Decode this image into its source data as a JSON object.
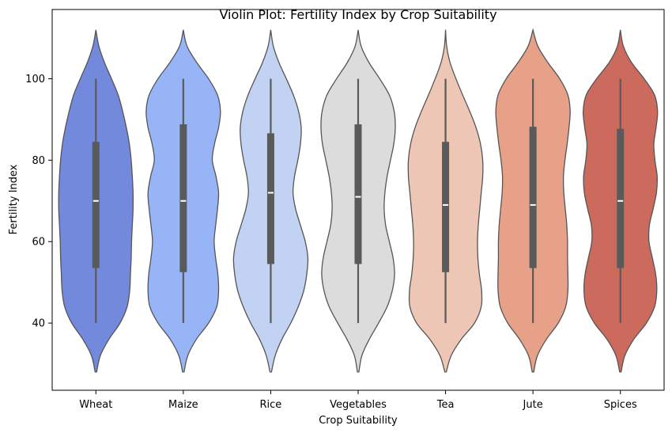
{
  "chart_data": {
    "type": "violin",
    "title": "Violin Plot: Fertility Index by Crop Suitability",
    "xlabel": "Crop Suitability",
    "ylabel": "Fertility Index",
    "ylim": [
      23.5,
      117
    ],
    "yticks": [
      40,
      60,
      80,
      100
    ],
    "grid": false,
    "categories": [
      "Wheat",
      "Maize",
      "Rice",
      "Vegetables",
      "Tea",
      "Jute",
      "Spices"
    ],
    "colors": [
      "#7389DB",
      "#97B4F7",
      "#C1D2F2",
      "#DCDCDC",
      "#EDC6B5",
      "#E6A188",
      "#CC6A5D"
    ],
    "stats": [
      {
        "min": 40,
        "q1": 53.5,
        "median": 70,
        "q3": 84.5,
        "max": 100
      },
      {
        "min": 40,
        "q1": 52.5,
        "median": 70,
        "q3": 88.8,
        "max": 100
      },
      {
        "min": 40,
        "q1": 54.5,
        "median": 72,
        "q3": 86.6,
        "max": 100
      },
      {
        "min": 40,
        "q1": 54.5,
        "median": 71,
        "q3": 88.8,
        "max": 100
      },
      {
        "min": 40,
        "q1": 52.5,
        "median": 69,
        "q3": 84.5,
        "max": 100
      },
      {
        "min": 40,
        "q1": 53.5,
        "median": 69,
        "q3": 88.2,
        "max": 100
      },
      {
        "min": 40,
        "q1": 53.5,
        "median": 70,
        "q3": 87.7,
        "max": 100
      }
    ],
    "density_y": [
      28,
      32,
      36,
      40,
      44,
      48,
      52,
      56,
      60,
      64,
      68,
      72,
      76,
      80,
      84,
      88,
      92,
      96,
      100,
      104,
      108,
      112
    ],
    "densities": [
      [
        0.02,
        0.12,
        0.35,
        0.65,
        0.84,
        0.91,
        0.93,
        0.95,
        0.96,
        0.98,
        1.0,
        1.0,
        0.98,
        0.95,
        0.9,
        0.82,
        0.72,
        0.6,
        0.42,
        0.23,
        0.08,
        0.0
      ],
      [
        0.02,
        0.12,
        0.35,
        0.68,
        0.9,
        0.95,
        0.93,
        0.87,
        0.83,
        0.87,
        0.92,
        0.95,
        0.88,
        0.78,
        0.84,
        0.95,
        1.0,
        0.92,
        0.68,
        0.36,
        0.1,
        0.0
      ],
      [
        0.02,
        0.12,
        0.3,
        0.54,
        0.74,
        0.89,
        0.97,
        1.0,
        0.93,
        0.8,
        0.67,
        0.6,
        0.64,
        0.73,
        0.8,
        0.82,
        0.75,
        0.61,
        0.42,
        0.22,
        0.07,
        0.0
      ],
      [
        0.02,
        0.1,
        0.3,
        0.55,
        0.78,
        0.92,
        0.98,
        0.94,
        0.84,
        0.74,
        0.7,
        0.72,
        0.78,
        0.87,
        0.96,
        1.0,
        0.97,
        0.84,
        0.58,
        0.29,
        0.08,
        0.0
      ],
      [
        0.02,
        0.15,
        0.42,
        0.78,
        0.96,
        0.97,
        0.91,
        0.87,
        0.86,
        0.88,
        0.92,
        0.96,
        1.0,
        1.0,
        0.94,
        0.82,
        0.65,
        0.46,
        0.28,
        0.12,
        0.03,
        0.0
      ],
      [
        0.02,
        0.12,
        0.36,
        0.68,
        0.88,
        0.94,
        0.94,
        0.93,
        0.93,
        0.91,
        0.87,
        0.83,
        0.82,
        0.86,
        0.92,
        0.97,
        1.0,
        0.94,
        0.72,
        0.4,
        0.13,
        0.0
      ],
      [
        0.02,
        0.12,
        0.36,
        0.7,
        0.92,
        0.98,
        0.95,
        0.86,
        0.77,
        0.78,
        0.88,
        0.97,
        0.99,
        0.93,
        0.9,
        0.96,
        1.0,
        0.92,
        0.64,
        0.3,
        0.08,
        0.0
      ]
    ]
  }
}
